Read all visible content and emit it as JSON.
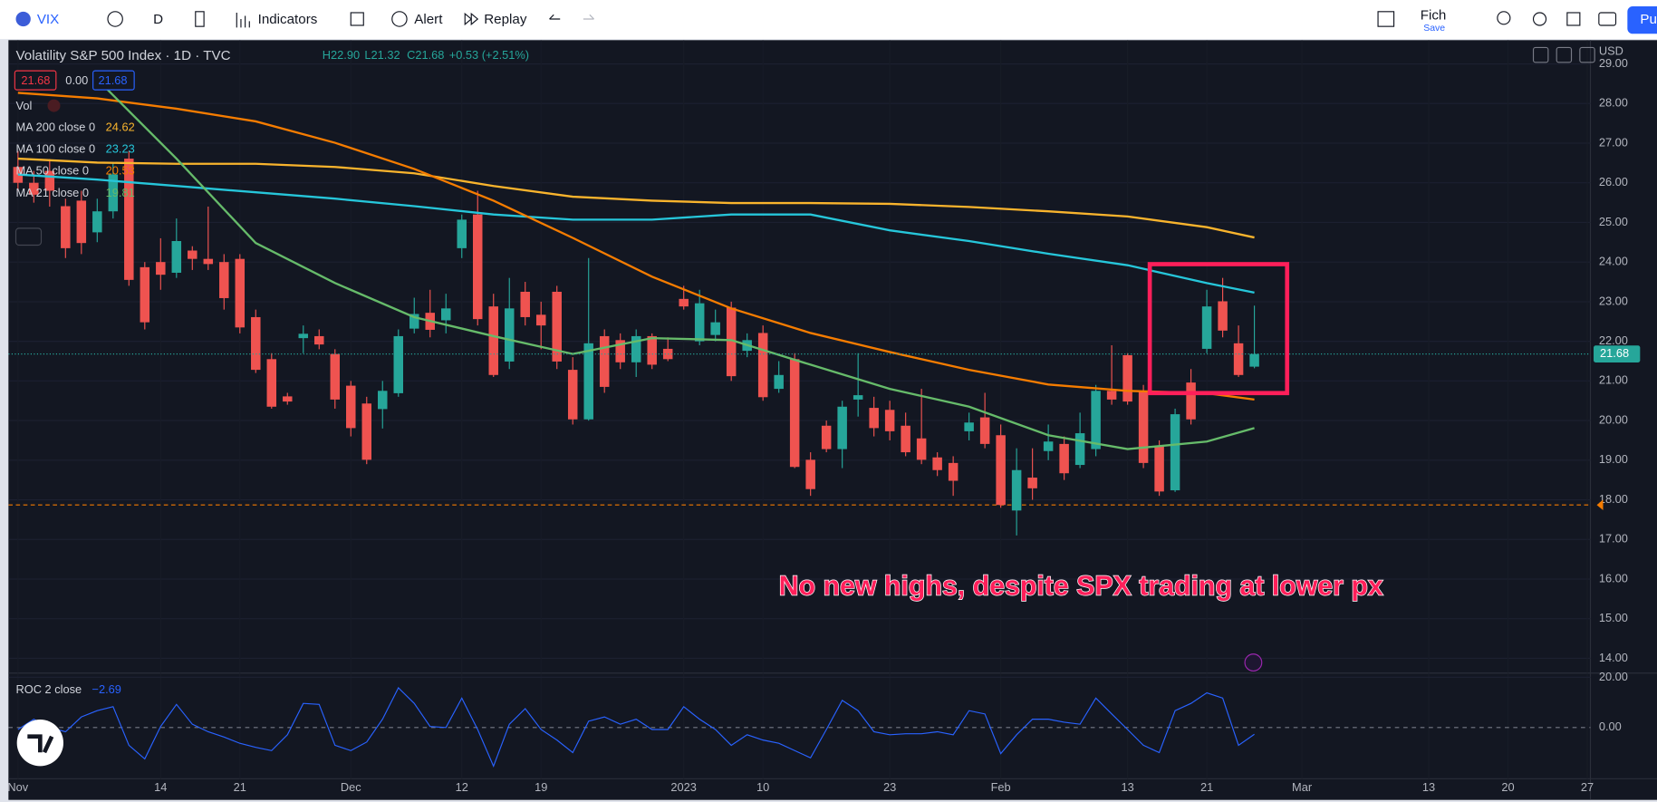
{
  "toolbar": {
    "symbol": "VIX",
    "interval": "D",
    "indicators": "Indicators",
    "alert": "Alert",
    "replay": "Replay",
    "layout_name": "Fich",
    "save": "Save",
    "publish": "Pu"
  },
  "chart_data": [
    {
      "type": "candlestick",
      "title": "Volatility S&P 500 Index · 1D · TVC",
      "ohlc_text": [
        "H22.90",
        "L21.32",
        "C21.68",
        "+0.53 (+2.51%)"
      ],
      "price_boxes": [
        "21.68",
        "0.00",
        "21.68"
      ],
      "volume_label": "Vol",
      "currency": "USD",
      "annotation": "No new highs, despite SPX trading at lower px",
      "up_color": "#26a69a",
      "down_color": "#ef5350",
      "candles": [
        {
          "o": 26.4,
          "h": 26.8,
          "l": 25.8,
          "c": 26.0
        },
        {
          "o": 26.0,
          "h": 26.3,
          "l": 25.5,
          "c": 25.7
        },
        {
          "o": 26.3,
          "h": 26.6,
          "l": 25.4,
          "c": 25.8
        },
        {
          "o": 25.41,
          "h": 25.6,
          "l": 24.1,
          "c": 24.35
        },
        {
          "o": 25.55,
          "h": 25.8,
          "l": 24.2,
          "c": 24.48
        },
        {
          "o": 24.75,
          "h": 25.6,
          "l": 24.5,
          "c": 25.28
        },
        {
          "o": 25.28,
          "h": 26.5,
          "l": 25.1,
          "c": 26.21
        },
        {
          "o": 26.61,
          "h": 26.8,
          "l": 23.4,
          "c": 23.55
        },
        {
          "o": 23.87,
          "h": 24.0,
          "l": 22.3,
          "c": 22.48
        },
        {
          "o": 24.0,
          "h": 24.6,
          "l": 23.3,
          "c": 23.68
        },
        {
          "o": 23.73,
          "h": 25.1,
          "l": 23.6,
          "c": 24.53
        },
        {
          "o": 24.29,
          "h": 24.4,
          "l": 23.8,
          "c": 24.08
        },
        {
          "o": 24.08,
          "h": 25.4,
          "l": 23.8,
          "c": 23.95
        },
        {
          "o": 24.0,
          "h": 24.2,
          "l": 22.8,
          "c": 23.09
        },
        {
          "o": 24.08,
          "h": 24.2,
          "l": 22.2,
          "c": 22.35
        },
        {
          "o": 22.61,
          "h": 22.8,
          "l": 21.2,
          "c": 21.28
        },
        {
          "o": 21.55,
          "h": 21.7,
          "l": 20.3,
          "c": 20.35
        },
        {
          "o": 20.61,
          "h": 20.7,
          "l": 20.4,
          "c": 20.48
        },
        {
          "o": 22.08,
          "h": 22.4,
          "l": 21.7,
          "c": 22.19
        },
        {
          "o": 22.13,
          "h": 22.3,
          "l": 21.8,
          "c": 21.92
        },
        {
          "o": 21.68,
          "h": 21.8,
          "l": 20.3,
          "c": 20.53
        },
        {
          "o": 20.88,
          "h": 21.0,
          "l": 19.6,
          "c": 19.81
        },
        {
          "o": 20.43,
          "h": 20.6,
          "l": 18.9,
          "c": 19.01
        },
        {
          "o": 20.29,
          "h": 21.0,
          "l": 19.8,
          "c": 20.75
        },
        {
          "o": 20.69,
          "h": 22.3,
          "l": 20.6,
          "c": 22.13
        },
        {
          "o": 22.32,
          "h": 23.1,
          "l": 22.2,
          "c": 22.69
        },
        {
          "o": 22.72,
          "h": 23.3,
          "l": 22.1,
          "c": 22.29
        },
        {
          "o": 22.53,
          "h": 23.2,
          "l": 22.2,
          "c": 22.83
        },
        {
          "o": 24.35,
          "h": 25.2,
          "l": 24.1,
          "c": 25.07
        },
        {
          "o": 25.2,
          "h": 25.8,
          "l": 22.4,
          "c": 22.56
        },
        {
          "o": 22.88,
          "h": 23.2,
          "l": 21.1,
          "c": 21.15
        },
        {
          "o": 21.49,
          "h": 23.6,
          "l": 21.3,
          "c": 22.83
        },
        {
          "o": 23.25,
          "h": 23.5,
          "l": 22.4,
          "c": 22.61
        },
        {
          "o": 22.67,
          "h": 23.0,
          "l": 21.8,
          "c": 22.4
        },
        {
          "o": 23.25,
          "h": 23.4,
          "l": 21.3,
          "c": 21.49
        },
        {
          "o": 21.28,
          "h": 21.6,
          "l": 19.9,
          "c": 20.03
        },
        {
          "o": 20.03,
          "h": 24.1,
          "l": 20.0,
          "c": 21.95
        },
        {
          "o": 22.13,
          "h": 22.3,
          "l": 20.7,
          "c": 20.85
        },
        {
          "o": 22.03,
          "h": 22.2,
          "l": 21.3,
          "c": 21.47
        },
        {
          "o": 21.47,
          "h": 22.3,
          "l": 21.1,
          "c": 22.13
        },
        {
          "o": 22.13,
          "h": 22.2,
          "l": 21.3,
          "c": 21.41
        },
        {
          "o": 21.81,
          "h": 22.1,
          "l": 21.5,
          "c": 21.55
        },
        {
          "o": 23.07,
          "h": 23.4,
          "l": 22.8,
          "c": 22.88
        },
        {
          "o": 22.0,
          "h": 23.3,
          "l": 21.9,
          "c": 22.96
        },
        {
          "o": 22.16,
          "h": 22.8,
          "l": 22.0,
          "c": 22.48
        },
        {
          "o": 22.85,
          "h": 23.0,
          "l": 21.0,
          "c": 21.12
        },
        {
          "o": 21.76,
          "h": 22.2,
          "l": 21.6,
          "c": 22.03
        },
        {
          "o": 22.21,
          "h": 22.4,
          "l": 20.5,
          "c": 20.59
        },
        {
          "o": 20.8,
          "h": 21.5,
          "l": 20.7,
          "c": 21.15
        },
        {
          "o": 21.55,
          "h": 21.7,
          "l": 18.8,
          "c": 18.83
        },
        {
          "o": 19.01,
          "h": 19.2,
          "l": 18.1,
          "c": 18.27
        },
        {
          "o": 19.87,
          "h": 20.0,
          "l": 19.2,
          "c": 19.28
        },
        {
          "o": 19.28,
          "h": 20.5,
          "l": 18.8,
          "c": 20.35
        },
        {
          "o": 20.53,
          "h": 21.7,
          "l": 20.1,
          "c": 20.64
        },
        {
          "o": 20.32,
          "h": 20.6,
          "l": 19.6,
          "c": 19.81
        },
        {
          "o": 20.27,
          "h": 20.5,
          "l": 19.5,
          "c": 19.73
        },
        {
          "o": 19.87,
          "h": 20.2,
          "l": 19.1,
          "c": 19.2
        },
        {
          "o": 19.55,
          "h": 20.8,
          "l": 18.9,
          "c": 19.01
        },
        {
          "o": 19.07,
          "h": 19.2,
          "l": 18.6,
          "c": 18.75
        },
        {
          "o": 18.93,
          "h": 19.1,
          "l": 18.1,
          "c": 18.48
        },
        {
          "o": 19.73,
          "h": 20.2,
          "l": 19.5,
          "c": 19.95
        },
        {
          "o": 20.08,
          "h": 20.7,
          "l": 19.3,
          "c": 19.41
        },
        {
          "o": 19.63,
          "h": 19.9,
          "l": 17.8,
          "c": 17.87
        },
        {
          "o": 17.73,
          "h": 19.3,
          "l": 17.1,
          "c": 18.75
        },
        {
          "o": 18.56,
          "h": 19.3,
          "l": 18.0,
          "c": 18.29
        },
        {
          "o": 19.23,
          "h": 19.9,
          "l": 19.0,
          "c": 19.47
        },
        {
          "o": 19.41,
          "h": 19.6,
          "l": 18.5,
          "c": 18.67
        },
        {
          "o": 18.88,
          "h": 20.2,
          "l": 18.8,
          "c": 19.68
        },
        {
          "o": 19.28,
          "h": 20.9,
          "l": 19.1,
          "c": 20.75
        },
        {
          "o": 20.75,
          "h": 21.9,
          "l": 20.4,
          "c": 20.53
        },
        {
          "o": 21.65,
          "h": 21.7,
          "l": 20.4,
          "c": 20.48
        },
        {
          "o": 20.75,
          "h": 20.9,
          "l": 18.8,
          "c": 18.93
        },
        {
          "o": 19.36,
          "h": 19.5,
          "l": 18.1,
          "c": 18.21
        },
        {
          "o": 18.24,
          "h": 20.3,
          "l": 18.2,
          "c": 20.16
        },
        {
          "o": 20.96,
          "h": 21.3,
          "l": 19.9,
          "c": 20.03
        },
        {
          "o": 21.81,
          "h": 23.3,
          "l": 21.7,
          "c": 22.88
        },
        {
          "o": 23.01,
          "h": 23.6,
          "l": 22.1,
          "c": 22.27
        },
        {
          "o": 21.95,
          "h": 22.4,
          "l": 21.1,
          "c": 21.15
        },
        {
          "o": 21.36,
          "h": 22.9,
          "l": 21.32,
          "c": 21.68
        }
      ],
      "ma_x": [
        0,
        5,
        10,
        15,
        20,
        25,
        30,
        35,
        40,
        45,
        50,
        55,
        60,
        65,
        70,
        75,
        78
      ],
      "series": [
        {
          "name": "MA 200 close 0",
          "color": "#f9b42d",
          "values": [
            26.61,
            26.51,
            26.48,
            26.48,
            26.4,
            26.24,
            25.92,
            25.65,
            25.55,
            25.49,
            25.49,
            25.47,
            25.39,
            25.28,
            25.15,
            24.88,
            24.62
          ]
        },
        {
          "name": "MA 100 close 0",
          "color": "#26c6da",
          "values": [
            26.21,
            26.08,
            25.92,
            25.76,
            25.6,
            25.41,
            25.2,
            25.07,
            25.07,
            25.2,
            25.2,
            24.8,
            24.53,
            24.21,
            23.92,
            23.47,
            23.23
          ]
        },
        {
          "name": "MA 50 close 0",
          "color": "#f57c00",
          "values": [
            28.27,
            28.13,
            27.87,
            27.55,
            27.01,
            26.35,
            25.55,
            24.61,
            23.63,
            22.83,
            22.21,
            21.73,
            21.28,
            20.91,
            20.75,
            20.69,
            20.53
          ]
        },
        {
          "name": "MA 21 close 0",
          "color": "#66bb6a",
          "values": [
            null,
            28.61,
            26.61,
            24.48,
            23.47,
            22.61,
            22.13,
            21.68,
            22.08,
            22.03,
            21.41,
            20.8,
            20.35,
            19.63,
            19.28,
            19.47,
            19.81
          ]
        }
      ],
      "hlines": [
        {
          "value": 17.87,
          "color": "#f57c00"
        }
      ],
      "last_price": {
        "value": 21.68,
        "label": "21.68"
      },
      "ylim": [
        13.627,
        29.6
      ],
      "yticks": [
        {
          "value": 14,
          "label": "14.00"
        },
        {
          "value": 15,
          "label": "15.00"
        },
        {
          "value": 16,
          "label": "16.00"
        },
        {
          "value": 17,
          "label": "17.00"
        },
        {
          "value": 18,
          "label": "18.00"
        },
        {
          "value": 19,
          "label": "19.00"
        },
        {
          "value": 20,
          "label": "20.00"
        },
        {
          "value": 21,
          "label": "21.00"
        },
        {
          "value": 22,
          "label": "22.00"
        },
        {
          "value": 23,
          "label": "23.00"
        },
        {
          "value": 24,
          "label": "24.00"
        },
        {
          "value": 25,
          "label": "25.00"
        },
        {
          "value": 26,
          "label": "26.00"
        },
        {
          "value": 27,
          "label": "27.00"
        },
        {
          "value": 28,
          "label": "28.00"
        },
        {
          "value": 29,
          "label": "29.00"
        }
      ],
      "xlim": [
        -0.6,
        99.2
      ],
      "xticks": [
        {
          "value": 0,
          "label": "Nov"
        },
        {
          "value": 9,
          "label": "14"
        },
        {
          "value": 14,
          "label": "21"
        },
        {
          "value": 21,
          "label": "Dec"
        },
        {
          "value": 28,
          "label": "12"
        },
        {
          "value": 33,
          "label": "19"
        },
        {
          "value": 42,
          "label": "2023"
        },
        {
          "value": 47,
          "label": "10"
        },
        {
          "value": 55,
          "label": "23"
        },
        {
          "value": 62,
          "label": "Feb"
        },
        {
          "value": 70,
          "label": "13"
        },
        {
          "value": 75,
          "label": "21"
        },
        {
          "value": 81,
          "label": "Mar"
        },
        {
          "value": 89,
          "label": "13"
        },
        {
          "value": 94,
          "label": "20"
        },
        {
          "value": 99,
          "label": "27"
        }
      ],
      "grid": true
    },
    {
      "type": "line",
      "title": "ROC 2 close",
      "value_label": "−2.69",
      "color": "#2962ff",
      "values": [
        -0.8,
        3.3,
        0,
        -1.7,
        4.2,
        6.7,
        8.3,
        -7.1,
        -12.5,
        0.4,
        9.2,
        1.3,
        -1.7,
        -3.8,
        -6.3,
        -7.9,
        -9.2,
        -2.9,
        9.6,
        9.2,
        -7.1,
        -9.2,
        -5.8,
        3.3,
        15.8,
        9.6,
        0.4,
        0,
        11.7,
        -0.8,
        -15.4,
        1.3,
        7.5,
        -0.8,
        -5,
        -10,
        2.5,
        4.2,
        1.3,
        3.3,
        -0.8,
        -0.8,
        8.3,
        3.3,
        -0.8,
        -7.1,
        -2.9,
        -5,
        -6.3,
        -9.2,
        -12.1,
        -0.8,
        10.8,
        6.7,
        -1.7,
        -2.9,
        -2.5,
        -2.5,
        -1.7,
        -2.9,
        6.7,
        5.4,
        -10.4,
        -2.9,
        3.3,
        3.3,
        2.1,
        1.3,
        11.7,
        5.4,
        -0.8,
        -7.1,
        -10,
        6.7,
        9.6,
        13.8,
        11.7,
        -7.1,
        -2.69
      ],
      "ylim": [
        -20.42,
        21.25
      ],
      "yticks": [
        {
          "value": 20,
          "label": "20.00"
        },
        {
          "value": 0,
          "label": "0.00"
        }
      ]
    }
  ]
}
